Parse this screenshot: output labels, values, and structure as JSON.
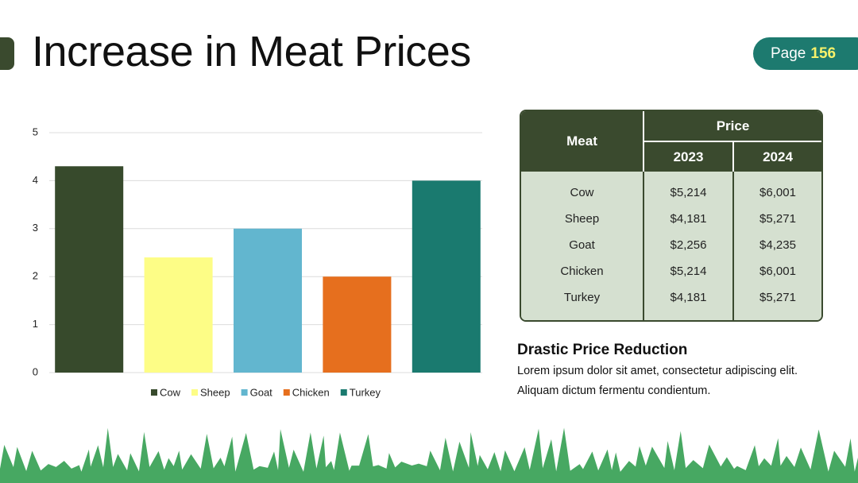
{
  "header": {
    "title": "Increase in Meat Prices",
    "page_label": "Page",
    "page_number": "156"
  },
  "chart_data": {
    "type": "bar",
    "categories": [
      "Cow",
      "Sheep",
      "Goat",
      "Chicken",
      "Turkey"
    ],
    "values": [
      4.3,
      2.4,
      3,
      2,
      4
    ],
    "colors": [
      "#374a2c",
      "#fdfd86",
      "#62b6cf",
      "#e66f1e",
      "#1a7a6f"
    ],
    "ylim": [
      0,
      5
    ],
    "yticks": [
      0,
      1,
      2,
      3,
      4,
      5
    ],
    "grid": true,
    "legend": "bottom"
  },
  "table": {
    "header": [
      "Meat",
      "Price"
    ],
    "subheader": [
      "2023",
      "2024"
    ],
    "rows": [
      [
        "Cow",
        "$5,214",
        "$6,001"
      ],
      [
        "Sheep",
        "$4,181",
        "$5,271"
      ],
      [
        "Goat",
        "$2,256",
        "$4,235"
      ],
      [
        "Chicken",
        "$5,214",
        "$6,001"
      ],
      [
        "Turkey",
        "$4,181",
        "$5,271"
      ]
    ]
  },
  "note": {
    "heading": "Drastic Price Reduction",
    "text": "Lorem ipsum dolor sit amet, consectetur adipiscing elit. Aliquam dictum fermentu condientum."
  }
}
